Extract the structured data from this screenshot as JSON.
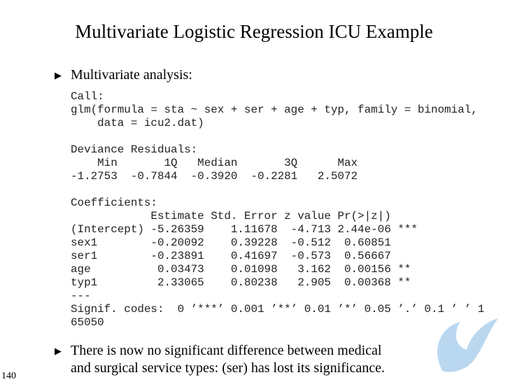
{
  "slide": {
    "title": "Multivariate Logistic Regression ICU Example",
    "bullets": [
      {
        "lines": [
          "Multivariate analysis:"
        ]
      },
      {
        "lines": [
          "There is now no significant difference between medical",
          "and surgical service types: (ser) has lost its significance."
        ]
      }
    ],
    "code_blocks": [
      {
        "lines": [
          "Call:",
          "glm(formula = sta ~ sex + ser + age + typ, family = binomial,",
          "    data = icu2.dat)"
        ]
      },
      {
        "lines": [
          "Deviance Residuals:",
          "    Min       1Q   Median       3Q      Max",
          "-1.2753  -0.7844  -0.3920  -0.2281   2.5072"
        ]
      },
      {
        "lines": [
          "Coefficients:",
          "            Estimate Std. Error z value Pr(>|z|)",
          "(Intercept) -5.26359    1.11678  -4.713 2.44e-06 ***",
          "sex1        -0.20092    0.39228  -0.512  0.60851",
          "ser1        -0.23891    0.41697  -0.573  0.56667",
          "age          0.03473    0.01098   3.162  0.00156 **",
          "typ1         2.33065    0.80238   2.905  0.00368 **",
          "---",
          "Signif. codes:  0 ’***’ 0.001 ’**’ 0.01 ’*’ 0.05 ’.’ 0.1 ’ ’ 1",
          "65050"
        ]
      }
    ],
    "page_number": "140"
  }
}
